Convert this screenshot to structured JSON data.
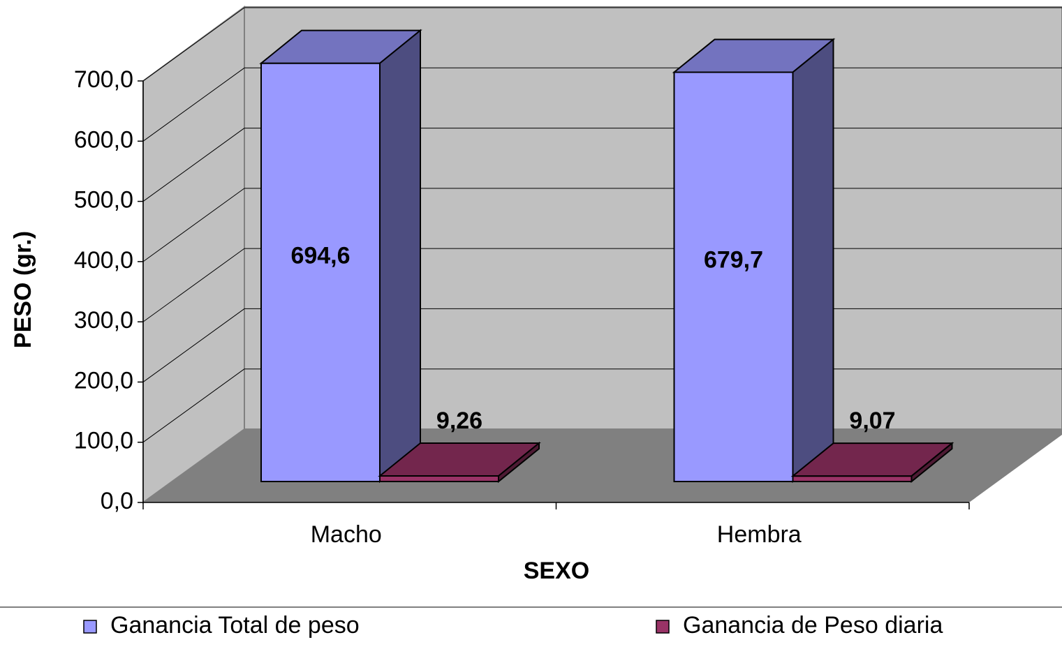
{
  "chart_data": {
    "type": "bar3d",
    "x_label": "SEXO",
    "y_label": "PESO (gr.)",
    "categories": [
      "Macho",
      "Hembra"
    ],
    "series": [
      {
        "name": "Ganancia Total de peso",
        "color": "#9999ff",
        "values": [
          694.6,
          679.7
        ],
        "value_labels": [
          "694,6",
          "679,7"
        ]
      },
      {
        "name": "Ganancia de Peso diaria",
        "color": "#993366",
        "values": [
          9.26,
          9.07
        ],
        "value_labels": [
          "9,26",
          "9,07"
        ]
      }
    ],
    "ylim": [
      0,
      700
    ],
    "yticks": [
      {
        "value": 0,
        "label": "0,0"
      },
      {
        "value": 100,
        "label": "100,0"
      },
      {
        "value": 200,
        "label": "200,0"
      },
      {
        "value": 300,
        "label": "300,0"
      },
      {
        "value": 400,
        "label": "400,0"
      },
      {
        "value": 500,
        "label": "500,0"
      },
      {
        "value": 600,
        "label": "600,0"
      },
      {
        "value": 700,
        "label": "700,0"
      }
    ],
    "grid": true
  }
}
